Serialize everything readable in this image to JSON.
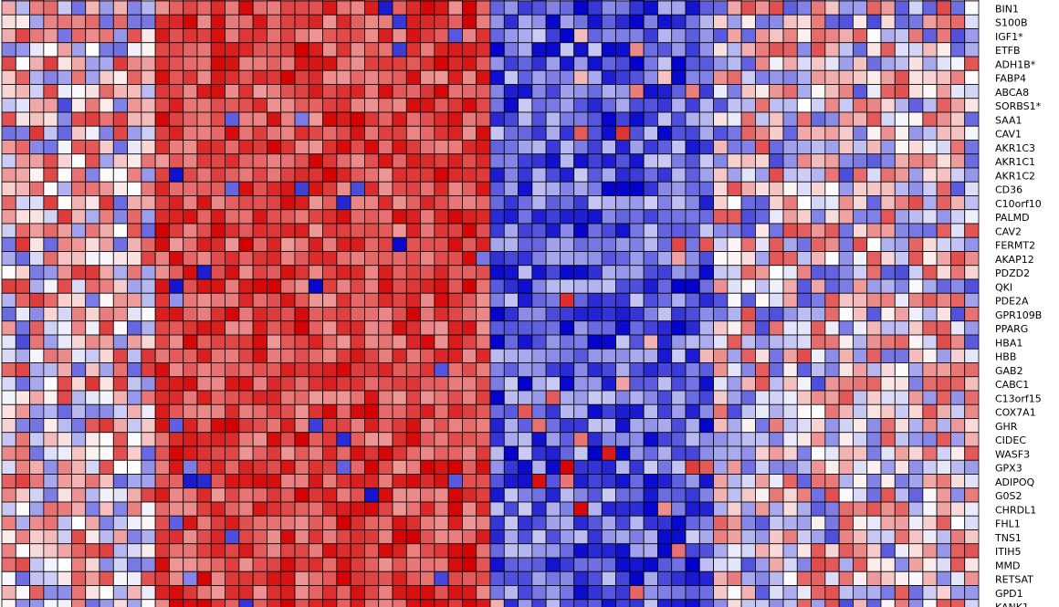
{
  "chart_data": {
    "type": "heatmap",
    "title": "",
    "xlabel": "",
    "ylabel": "",
    "legend": "none",
    "grid": true,
    "colors": {
      "high": "#d40000",
      "mid": "#ffffff",
      "low": "#0000cc",
      "cell_border": "#000000"
    },
    "partial_rows": [
      "top-clipped",
      "bottom-clipped"
    ],
    "genes": [
      "BIN1",
      "S100B",
      "IGF1*",
      "ETFB",
      "ADH1B*",
      "FABP4",
      "ABCA8",
      "SORBS1*",
      "SAA1",
      "CAV1",
      "AKR1C3",
      "AKR1C1",
      "AKR1C2",
      "CD36",
      "C10orf10",
      "PALMD",
      "CAV2",
      "FERMT2",
      "AKAP12",
      "PDZD2",
      "QKI",
      "PDE2A",
      "GPR109B",
      "PPARG",
      "HBA1",
      "HBB",
      "GAB2",
      "CABC1",
      "C13orf15",
      "COX7A1",
      "GHR",
      "CIDEC",
      "WASF3",
      "GPX3",
      "ADIPOQ",
      "G0S2",
      "CHRDL1",
      "FHL1",
      "TNS1",
      "ITIH5",
      "MMD",
      "RETSAT",
      "GPD1",
      "KANK1"
    ],
    "n_columns": 70,
    "column_groups": [
      {
        "columns": [
          1,
          11
        ],
        "value_range": [
          -0.6,
          0.8
        ]
      },
      {
        "columns": [
          12,
          35
        ],
        "value_range": [
          0.4,
          1.0
        ]
      },
      {
        "columns": [
          36,
          51
        ],
        "value_range": [
          -1.0,
          -0.2
        ]
      },
      {
        "columns": [
          52,
          70
        ],
        "value_range": [
          -0.7,
          0.7
        ]
      }
    ]
  }
}
